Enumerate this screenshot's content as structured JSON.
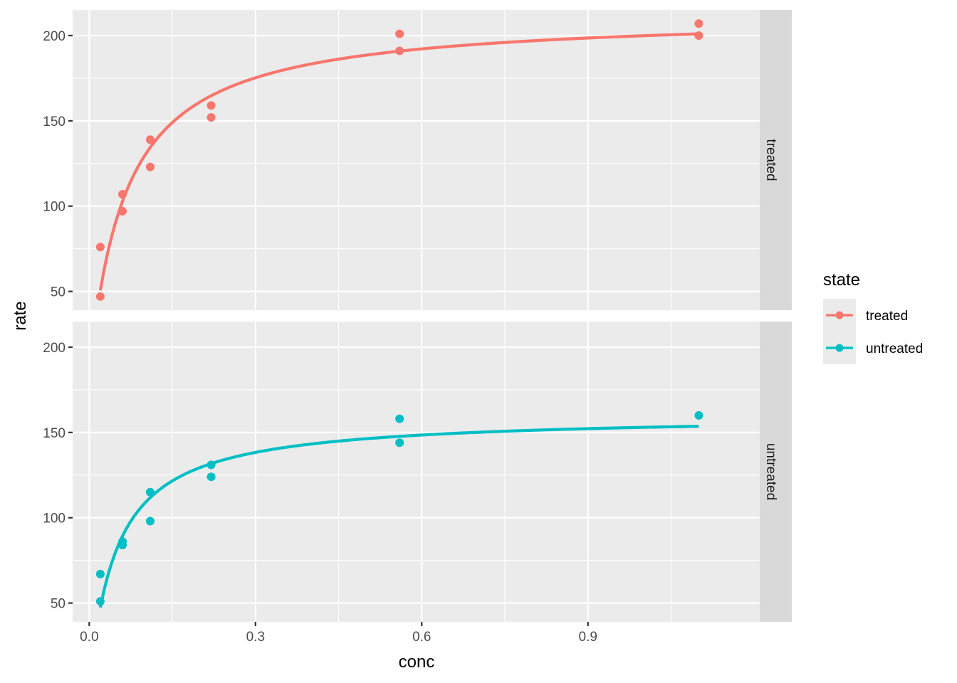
{
  "chart_data": {
    "type": "scatter",
    "xlabel": "conc",
    "ylabel": "rate",
    "xlim": [
      -0.03,
      1.21
    ],
    "ylim": [
      39,
      215
    ],
    "x_ticks": [
      0.0,
      0.3,
      0.6,
      0.9
    ],
    "x_tick_labels": [
      "0.0",
      "0.3",
      "0.6",
      "0.9"
    ],
    "y_ticks": [
      50,
      100,
      150,
      200
    ],
    "y_tick_labels": [
      "50",
      "100",
      "150",
      "200"
    ],
    "grid": true,
    "legend": {
      "title": "state",
      "position": "right",
      "entries": [
        "treated",
        "untreated"
      ]
    },
    "facets": [
      {
        "label": "treated",
        "color": "#F8766D",
        "points": [
          [
            0.02,
            76
          ],
          [
            0.02,
            47
          ],
          [
            0.06,
            97
          ],
          [
            0.06,
            107
          ],
          [
            0.11,
            123
          ],
          [
            0.11,
            139
          ],
          [
            0.22,
            159
          ],
          [
            0.22,
            152
          ],
          [
            0.56,
            191
          ],
          [
            0.56,
            201
          ],
          [
            1.1,
            207
          ],
          [
            1.1,
            200
          ]
        ],
        "fit": {
          "model": "michaelis-menten",
          "vmax": 212.7,
          "km": 0.0641
        }
      },
      {
        "label": "untreated",
        "color": "#00BFC4",
        "points": [
          [
            0.02,
            67
          ],
          [
            0.02,
            51
          ],
          [
            0.06,
            84
          ],
          [
            0.06,
            86
          ],
          [
            0.11,
            98
          ],
          [
            0.11,
            115
          ],
          [
            0.22,
            131
          ],
          [
            0.22,
            124
          ],
          [
            0.56,
            144
          ],
          [
            0.56,
            158
          ],
          [
            1.1,
            160
          ]
        ],
        "fit": {
          "model": "michaelis-menten",
          "vmax": 160.3,
          "km": 0.0477
        }
      }
    ]
  }
}
